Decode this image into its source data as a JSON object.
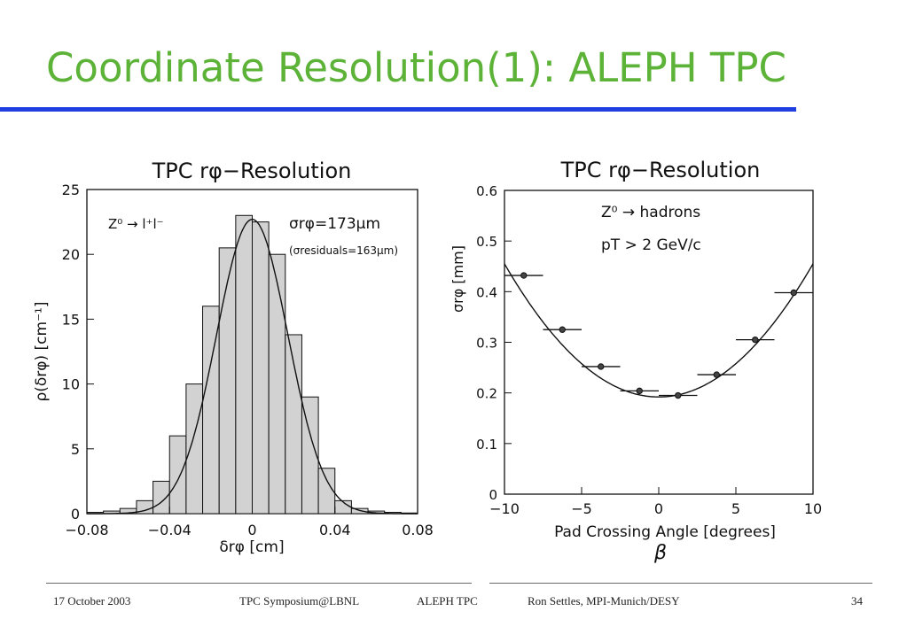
{
  "slide": {
    "title": "Coordinate Resolution(1): ALEPH TPC",
    "title_color": "#5cb338",
    "rule_color": "#1f3fe0"
  },
  "footer": {
    "date": "17 October 2003",
    "event": "TPC Symposium@LBNL",
    "topic": "ALEPH TPC",
    "author": "Ron Settles, MPI-Munich/DESY",
    "page": "34"
  },
  "chart_data": [
    {
      "type": "bar",
      "title": "TPC rφ−Resolution",
      "xlabel": "δrφ [cm]",
      "ylabel": "ρ(δrφ) [cm⁻¹]",
      "xlim": [
        -0.08,
        0.08
      ],
      "ylim": [
        0,
        25
      ],
      "xticks": [
        -0.08,
        -0.04,
        0,
        0.04,
        0.08
      ],
      "xtick_labels": [
        "−0.08",
        "−0.04",
        "0",
        "0.04",
        "0.08"
      ],
      "yticks": [
        0,
        5,
        10,
        15,
        20,
        25
      ],
      "ytick_labels": [
        "0",
        "5",
        "10",
        "15",
        "20",
        "25"
      ],
      "bin_edges": [
        -0.08,
        -0.072,
        -0.064,
        -0.056,
        -0.048,
        -0.04,
        -0.032,
        -0.024,
        -0.016,
        -0.008,
        0,
        0.008,
        0.016,
        0.024,
        0.032,
        0.04,
        0.048,
        0.056,
        0.064,
        0.072,
        0.08
      ],
      "values": [
        0.1,
        0.2,
        0.4,
        1.0,
        2.5,
        6.0,
        10.0,
        16.0,
        20.5,
        23.0,
        22.5,
        20.0,
        13.8,
        9.0,
        3.5,
        1.0,
        0.4,
        0.2,
        0.1,
        0.05
      ],
      "fit": {
        "type": "gaussian",
        "amplitude": 22.7,
        "mean": 0.0,
        "sigma": 0.0173
      },
      "annotations": {
        "process": "Z⁰ → l⁺l⁻",
        "sigma_symbol": "σrφ",
        "sigma_value": "=173μm",
        "residuals": "(σresiduals=163μm)"
      },
      "grid": false
    },
    {
      "type": "scatter",
      "title": "TPC rφ−Resolution",
      "xlabel": "Pad Crossing Angle [degrees]",
      "xlabel2": "β",
      "ylabel": "σrφ [mm]",
      "xlim": [
        -10,
        10
      ],
      "ylim": [
        0,
        0.6
      ],
      "xticks": [
        -10,
        -5,
        0,
        5,
        10
      ],
      "xtick_labels": [
        "−10",
        "−5",
        "0",
        "5",
        "10"
      ],
      "yticks": [
        0,
        0.1,
        0.2,
        0.3,
        0.4,
        0.5,
        0.6
      ],
      "ytick_labels": [
        "0",
        "0.1",
        "0.2",
        "0.3",
        "0.4",
        "0.5",
        "0.6"
      ],
      "points": [
        {
          "x": -8.75,
          "y": 0.432,
          "xerr": 1.25
        },
        {
          "x": -6.25,
          "y": 0.325,
          "xerr": 1.25
        },
        {
          "x": -3.75,
          "y": 0.252,
          "xerr": 1.25
        },
        {
          "x": -1.25,
          "y": 0.204,
          "xerr": 1.25
        },
        {
          "x": 1.25,
          "y": 0.195,
          "xerr": 1.25
        },
        {
          "x": 3.75,
          "y": 0.236,
          "xerr": 1.25
        },
        {
          "x": 6.25,
          "y": 0.305,
          "xerr": 1.25
        },
        {
          "x": 8.75,
          "y": 0.398,
          "xerr": 1.25
        }
      ],
      "fit": {
        "type": "parabola",
        "a": 0.00263,
        "x0": 0.0,
        "c": 0.192
      },
      "annotations": {
        "process": "Z⁰ → hadrons",
        "cut": "pT > 2 GeV/c"
      },
      "grid": false
    }
  ]
}
